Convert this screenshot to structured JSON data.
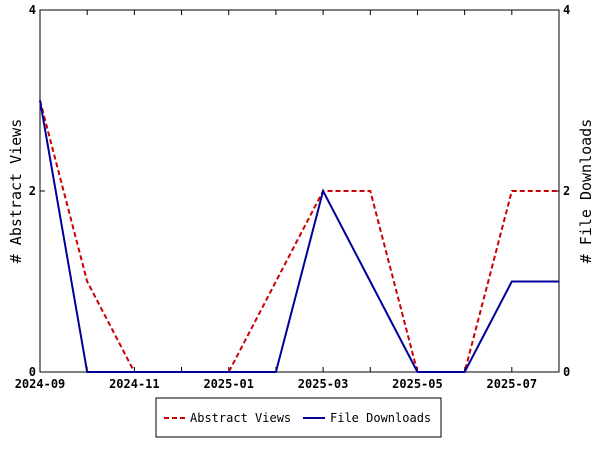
{
  "chart_data": {
    "type": "line",
    "x": [
      "2024-09",
      "2024-10",
      "2024-11",
      "2024-12",
      "2025-01",
      "2025-02",
      "2025-03",
      "2025-04",
      "2025-05",
      "2025-06",
      "2025-07",
      "2025-08"
    ],
    "x_tick_labels": [
      "2024-09",
      "2024-11",
      "2025-01",
      "2025-03",
      "2025-05",
      "2025-07"
    ],
    "series": [
      {
        "name": "Abstract Views",
        "color": "#cc0000",
        "dash": "dashed",
        "axis": "left",
        "values": [
          3,
          1,
          0,
          0,
          0,
          1,
          2,
          2,
          0,
          0,
          2,
          2
        ]
      },
      {
        "name": "File Downloads",
        "color": "#000099",
        "dash": "solid",
        "axis": "right",
        "values": [
          3,
          0,
          0,
          0,
          0,
          0,
          2,
          1,
          0,
          0,
          1,
          1
        ]
      }
    ],
    "ylabel_left": "# Abstract Views",
    "ylabel_right": "# File Downloads",
    "ylim": [
      0,
      4
    ],
    "y_ticks": [
      0,
      2,
      4
    ],
    "grid": false,
    "legend_position": "bottom"
  }
}
